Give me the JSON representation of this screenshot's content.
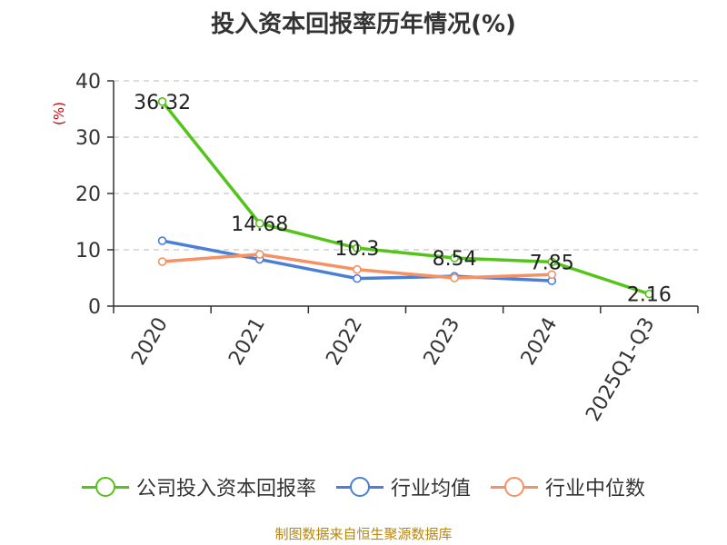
{
  "title": "投入资本回报率历年情况(%)",
  "source": "制图数据来自恒生聚源数据库",
  "legend_labels": [
    "公司投入资本回报率",
    "行业均值",
    "行业中位数"
  ],
  "colors": {
    "company": "#52c41a",
    "mean": "#4a7fd8",
    "median": "#f59163",
    "unit": "#cc0000",
    "source": "#b8860b"
  },
  "chart_data": {
    "type": "line",
    "title": "投入资本回报率历年情况(%)",
    "ylabel": "(%)",
    "categories": [
      "2020",
      "2021",
      "2022",
      "2023",
      "2024",
      "2025Q1-Q3"
    ],
    "ylim": [
      0,
      40
    ],
    "yticks": [
      "0",
      "10",
      "20",
      "30",
      "40"
    ],
    "grid": true,
    "legend": "bottom",
    "series": [
      {
        "name": "公司投入资本回报率",
        "values": [
          36.32,
          14.68,
          10.3,
          8.54,
          7.85,
          2.16
        ],
        "labels": [
          "36.32",
          "14.68",
          "10.3",
          "8.54",
          "7.85",
          "2.16"
        ]
      },
      {
        "name": "行业均值",
        "values": [
          11.6,
          8.3,
          4.9,
          5.3,
          4.5,
          null
        ]
      },
      {
        "name": "行业中位数",
        "values": [
          7.9,
          9.2,
          6.5,
          5.0,
          5.6,
          null
        ]
      }
    ]
  }
}
